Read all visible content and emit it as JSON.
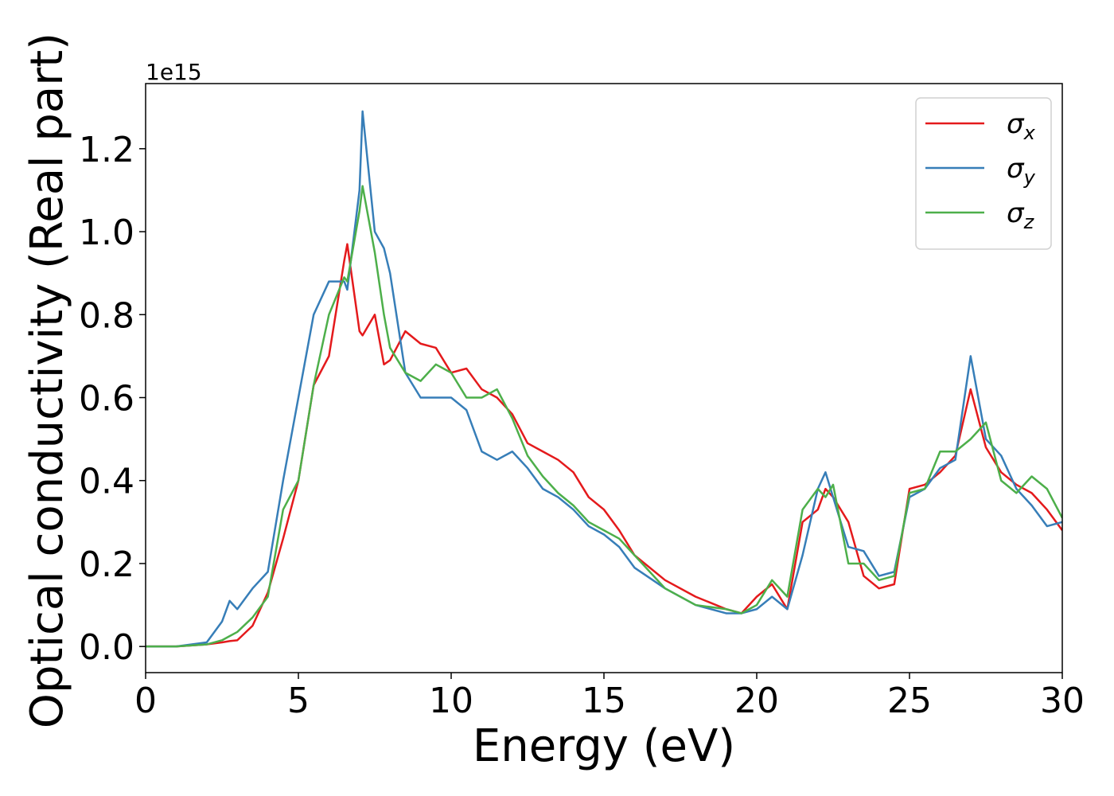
{
  "chart_data": {
    "type": "line",
    "xlabel": "Energy (eV)",
    "ylabel": "Optical conductivity (Real part)",
    "y_offset_label": "1e15",
    "x": [
      0,
      1,
      2,
      2.5,
      2.75,
      3,
      3.5,
      4,
      4.5,
      5,
      5.5,
      6,
      6.5,
      6.6,
      7,
      7.1,
      7.5,
      7.8,
      8,
      8.5,
      9,
      9.5,
      10,
      10.5,
      11,
      11.5,
      12,
      12.5,
      13,
      13.5,
      14,
      14.5,
      15,
      15.5,
      16,
      17,
      18,
      19,
      19.5,
      20,
      20.5,
      21,
      21.5,
      22,
      22.25,
      22.5,
      23,
      23.5,
      24,
      24.5,
      25,
      25.5,
      26,
      26.5,
      27,
      27.5,
      28,
      28.5,
      29,
      29.5,
      30
    ],
    "series": [
      {
        "name": "σx",
        "color": "#e41a1c",
        "values": [
          0,
          0,
          0.005,
          0.01,
          0.013,
          0.015,
          0.05,
          0.13,
          0.26,
          0.4,
          0.63,
          0.7,
          0.93,
          0.97,
          0.76,
          0.75,
          0.8,
          0.68,
          0.69,
          0.76,
          0.73,
          0.72,
          0.66,
          0.67,
          0.62,
          0.6,
          0.56,
          0.49,
          0.47,
          0.45,
          0.42,
          0.36,
          0.33,
          0.28,
          0.22,
          0.16,
          0.12,
          0.09,
          0.08,
          0.12,
          0.15,
          0.09,
          0.3,
          0.33,
          0.38,
          0.36,
          0.3,
          0.17,
          0.14,
          0.15,
          0.38,
          0.39,
          0.42,
          0.46,
          0.62,
          0.48,
          0.42,
          0.39,
          0.37,
          0.33,
          0.28
        ]
      },
      {
        "name": "σy",
        "color": "#377eb8",
        "values": [
          0,
          0,
          0.01,
          0.06,
          0.11,
          0.09,
          0.14,
          0.18,
          0.4,
          0.6,
          0.8,
          0.88,
          0.88,
          0.86,
          1.1,
          1.29,
          1.0,
          0.96,
          0.9,
          0.66,
          0.6,
          0.6,
          0.6,
          0.57,
          0.47,
          0.45,
          0.47,
          0.43,
          0.38,
          0.36,
          0.33,
          0.29,
          0.27,
          0.24,
          0.19,
          0.14,
          0.1,
          0.08,
          0.08,
          0.09,
          0.12,
          0.09,
          0.22,
          0.38,
          0.42,
          0.36,
          0.24,
          0.23,
          0.17,
          0.18,
          0.36,
          0.38,
          0.43,
          0.45,
          0.7,
          0.5,
          0.46,
          0.38,
          0.34,
          0.29,
          0.3
        ]
      },
      {
        "name": "σz",
        "color": "#4daf4a",
        "values": [
          0,
          0,
          0.005,
          0.015,
          0.025,
          0.035,
          0.07,
          0.12,
          0.33,
          0.4,
          0.63,
          0.8,
          0.89,
          0.88,
          1.05,
          1.11,
          0.95,
          0.8,
          0.72,
          0.66,
          0.64,
          0.68,
          0.66,
          0.6,
          0.6,
          0.62,
          0.55,
          0.46,
          0.41,
          0.37,
          0.34,
          0.3,
          0.28,
          0.26,
          0.22,
          0.14,
          0.1,
          0.09,
          0.08,
          0.1,
          0.16,
          0.12,
          0.33,
          0.38,
          0.36,
          0.39,
          0.2,
          0.2,
          0.16,
          0.17,
          0.37,
          0.38,
          0.47,
          0.47,
          0.5,
          0.54,
          0.4,
          0.37,
          0.41,
          0.38,
          0.31
        ]
      }
    ],
    "xlim": [
      0,
      30
    ],
    "xticks": [
      0,
      5,
      10,
      15,
      20,
      25,
      30
    ],
    "ylim": [
      -0.063,
      1.357
    ],
    "yticks": [
      {
        "value": 0,
        "label": "0.0"
      },
      0.2,
      0.4,
      0.6,
      0.8,
      {
        "value": 1,
        "label": "1.0"
      },
      1.2
    ],
    "grid": false,
    "legend": "upper right"
  }
}
